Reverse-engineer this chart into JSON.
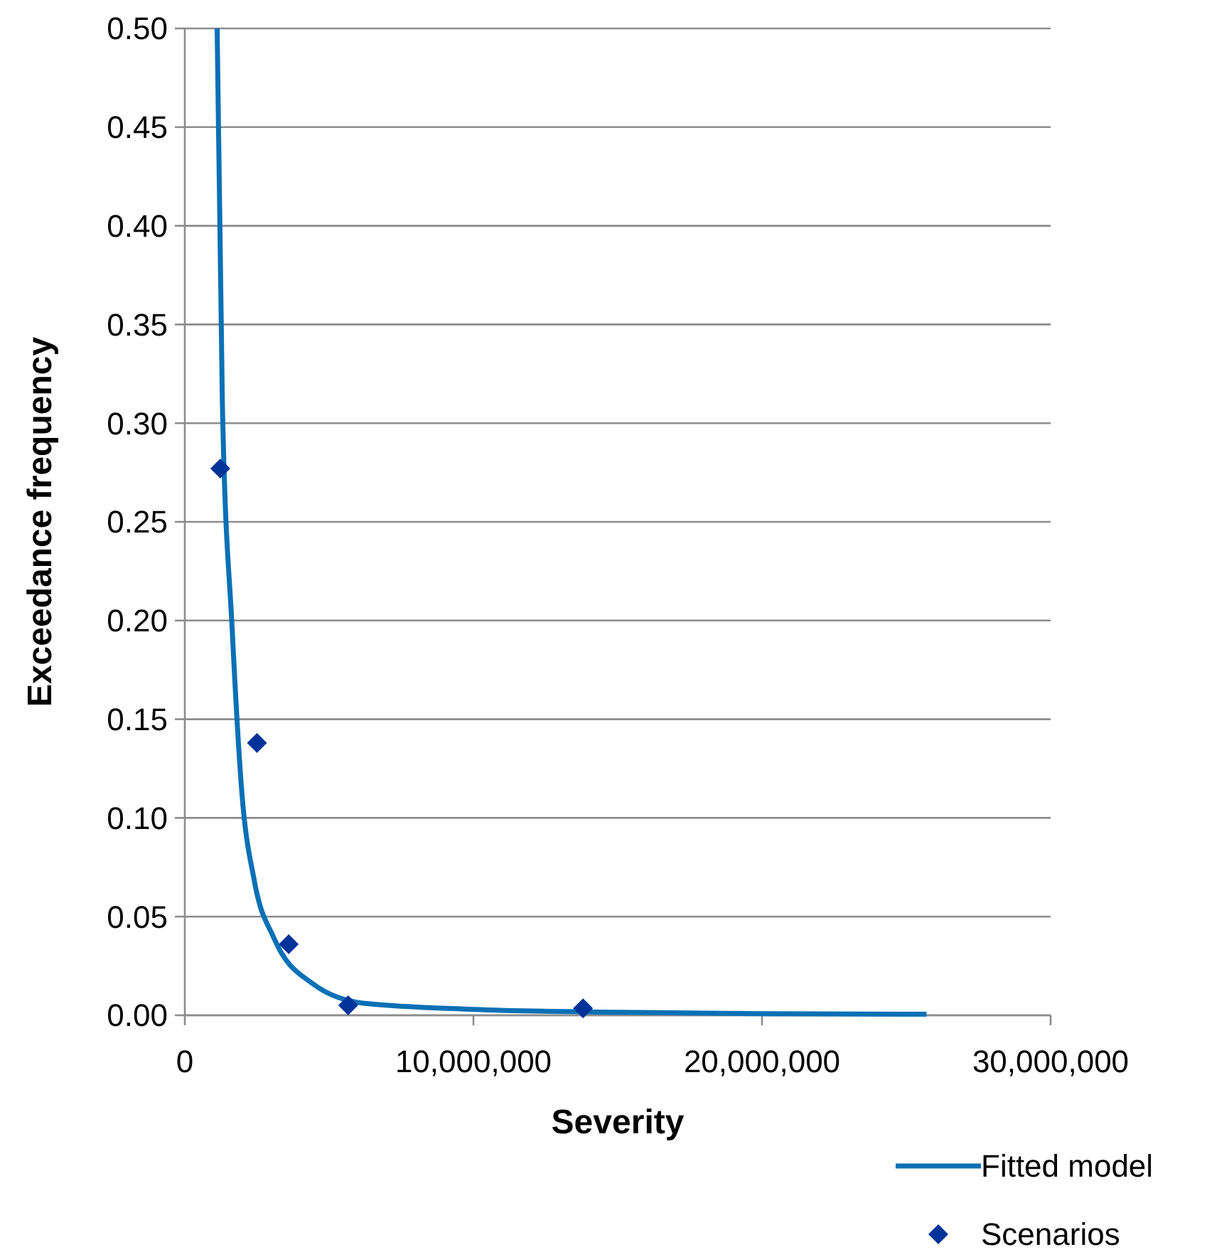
{
  "chart_data": {
    "type": "scatter",
    "xlabel": "Severity",
    "ylabel": "Exceedance frequency",
    "xlim": [
      0,
      30000000
    ],
    "xticks": [
      {
        "value": 0,
        "label": "0"
      },
      {
        "value": 10000000,
        "label": "10,000,000"
      },
      {
        "value": 20000000,
        "label": "20,000,000"
      },
      {
        "value": 30000000,
        "label": "30,000,000"
      }
    ],
    "ylim": [
      0,
      0.5
    ],
    "yticks": [
      {
        "value": 0,
        "label": "0.00"
      },
      {
        "value": 0.05,
        "label": "0.05"
      },
      {
        "value": 0.1,
        "label": "0.10"
      },
      {
        "value": 0.15,
        "label": "0.15"
      },
      {
        "value": 0.2,
        "label": "0.20"
      },
      {
        "value": 0.25,
        "label": "0.25"
      },
      {
        "value": 0.3,
        "label": "0.30"
      },
      {
        "value": 0.35,
        "label": "0.35"
      },
      {
        "value": 0.4,
        "label": "0.40"
      },
      {
        "value": 0.45,
        "label": "0.45"
      },
      {
        "value": 0.5,
        "label": "0.50"
      }
    ],
    "grid": "y",
    "legend": "bottom right",
    "series": [
      {
        "name": "Fitted model",
        "type": "line",
        "color": "#0a70b5",
        "marker": "none",
        "x": [
          1120000,
          1300000,
          1640000,
          1970000,
          2410000,
          3090000,
          4430000,
          6230000,
          10000000,
          15000000,
          20000000,
          25700000
        ],
        "values": [
          0.5,
          0.311,
          0.196,
          0.114,
          0.068,
          0.039,
          0.016,
          0.006,
          0.003,
          0.0015,
          0.0008,
          0.0005
        ]
      },
      {
        "name": "Scenarios",
        "color": "#003399",
        "marker": "diamond",
        "x": [
          1230000,
          2500000,
          3600000,
          5660000,
          13800000
        ],
        "values": [
          0.277,
          0.138,
          0.036,
          0.005,
          0.0035
        ]
      }
    ]
  }
}
